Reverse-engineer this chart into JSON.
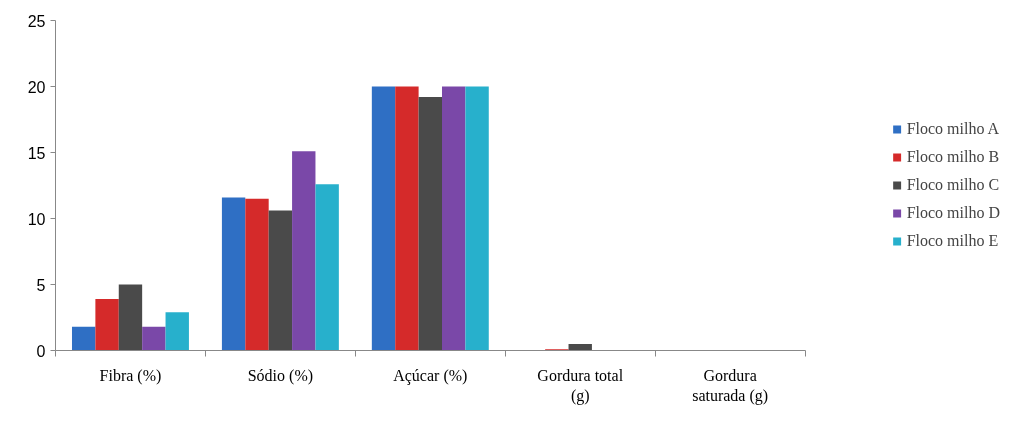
{
  "chart_data": {
    "type": "bar",
    "categories": [
      "Fibra (%)",
      "Sódio (%)",
      "Açúcar (%)",
      "Gordura total (g)",
      "Gordura saturada (g)"
    ],
    "series": [
      {
        "name": "Floco milho A",
        "color": "#2f6fc4",
        "values": [
          1.8,
          11.6,
          20,
          0,
          0
        ]
      },
      {
        "name": "Floco milho B",
        "color": "#d52a2a",
        "values": [
          3.9,
          11.5,
          20,
          0.1,
          0
        ]
      },
      {
        "name": "Floco milho C",
        "color": "#4a4a4a",
        "values": [
          5,
          10.6,
          19.2,
          0.5,
          0
        ]
      },
      {
        "name": "Floco milho D",
        "color": "#7a48a8",
        "values": [
          1.8,
          15.1,
          20,
          0,
          0
        ]
      },
      {
        "name": "Floco milho E",
        "color": "#27b0cc",
        "values": [
          2.9,
          12.6,
          20,
          0,
          0
        ]
      }
    ],
    "ylim": [
      0,
      25
    ],
    "yticks": [
      0,
      5,
      10,
      15,
      20,
      25
    ],
    "grid": false,
    "legend": "right"
  }
}
